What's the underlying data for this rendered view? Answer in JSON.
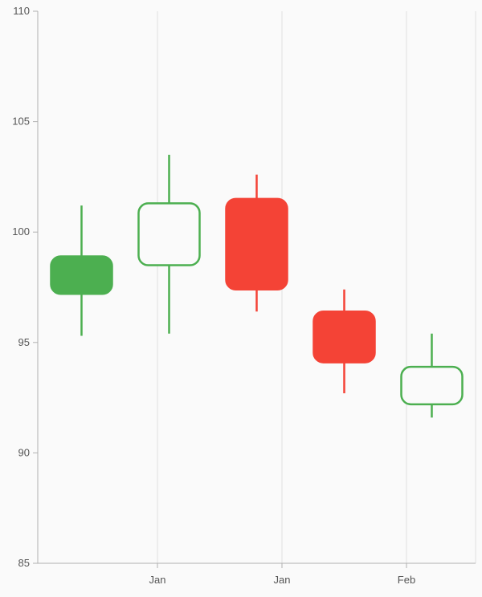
{
  "chart_data": {
    "type": "candlestick",
    "title": "",
    "xlabel": "",
    "ylabel": "",
    "ylim": [
      85,
      110
    ],
    "y_ticks": [
      85,
      90,
      95,
      100,
      105,
      110
    ],
    "x_tick_labels": [
      "Jan",
      "Jan",
      "Feb"
    ],
    "grid": {
      "x": true,
      "y": false
    },
    "legend": "none",
    "colors": {
      "bullish": "#4caf50",
      "bearish": "#f44336",
      "axis": "#b0b0b0",
      "grid": "#e0e0e0",
      "background": "#fafafa"
    },
    "candles": [
      {
        "open": 97.2,
        "close": 98.9,
        "high": 101.2,
        "low": 95.3,
        "filled": true
      },
      {
        "open": 98.5,
        "close": 101.3,
        "high": 103.5,
        "low": 95.4,
        "filled": false
      },
      {
        "open": 101.5,
        "close": 97.4,
        "high": 102.6,
        "low": 96.4,
        "filled": true
      },
      {
        "open": 96.4,
        "close": 94.1,
        "high": 97.4,
        "low": 92.7,
        "filled": true
      },
      {
        "open": 92.2,
        "close": 93.9,
        "high": 95.4,
        "low": 91.6,
        "filled": false
      }
    ]
  }
}
